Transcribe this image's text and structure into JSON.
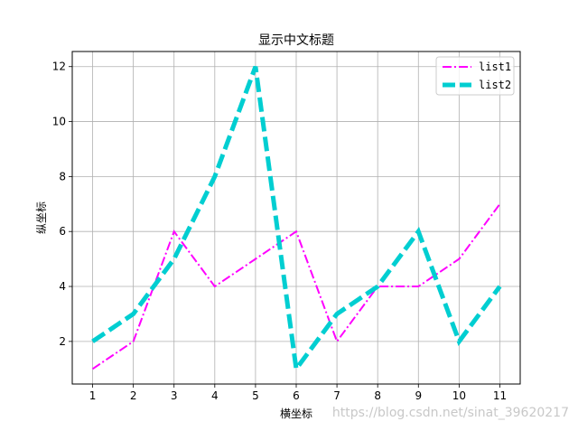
{
  "chart_data": {
    "type": "line",
    "title": "显示中文标题",
    "xlabel": "横坐标",
    "ylabel": "纵坐标",
    "x": [
      1,
      2,
      3,
      4,
      5,
      6,
      7,
      8,
      9,
      10,
      11
    ],
    "xticks": [
      "1",
      "2",
      "3",
      "4",
      "5",
      "6",
      "7",
      "8",
      "9",
      "10",
      "11"
    ],
    "yticks": [
      "2",
      "4",
      "6",
      "8",
      "10",
      "12"
    ],
    "ytick_values": [
      2,
      4,
      6,
      8,
      10,
      12
    ],
    "xlim": [
      0.5,
      11.5
    ],
    "ylim": [
      0.45,
      12.55
    ],
    "grid": true,
    "legend_position": "top-right",
    "series": [
      {
        "name": "list1",
        "values": [
          1,
          2,
          6,
          4,
          5,
          6,
          2,
          4,
          4,
          5,
          7
        ],
        "color": "#ff00ff",
        "style": "dashdot"
      },
      {
        "name": "list2",
        "values": [
          2,
          3,
          5,
          8,
          12,
          1,
          3,
          4,
          6,
          2,
          4
        ],
        "color": "#00ced1",
        "style": "dashed"
      }
    ]
  },
  "watermark": "https://blog.csdn.net/sinat_39620217"
}
